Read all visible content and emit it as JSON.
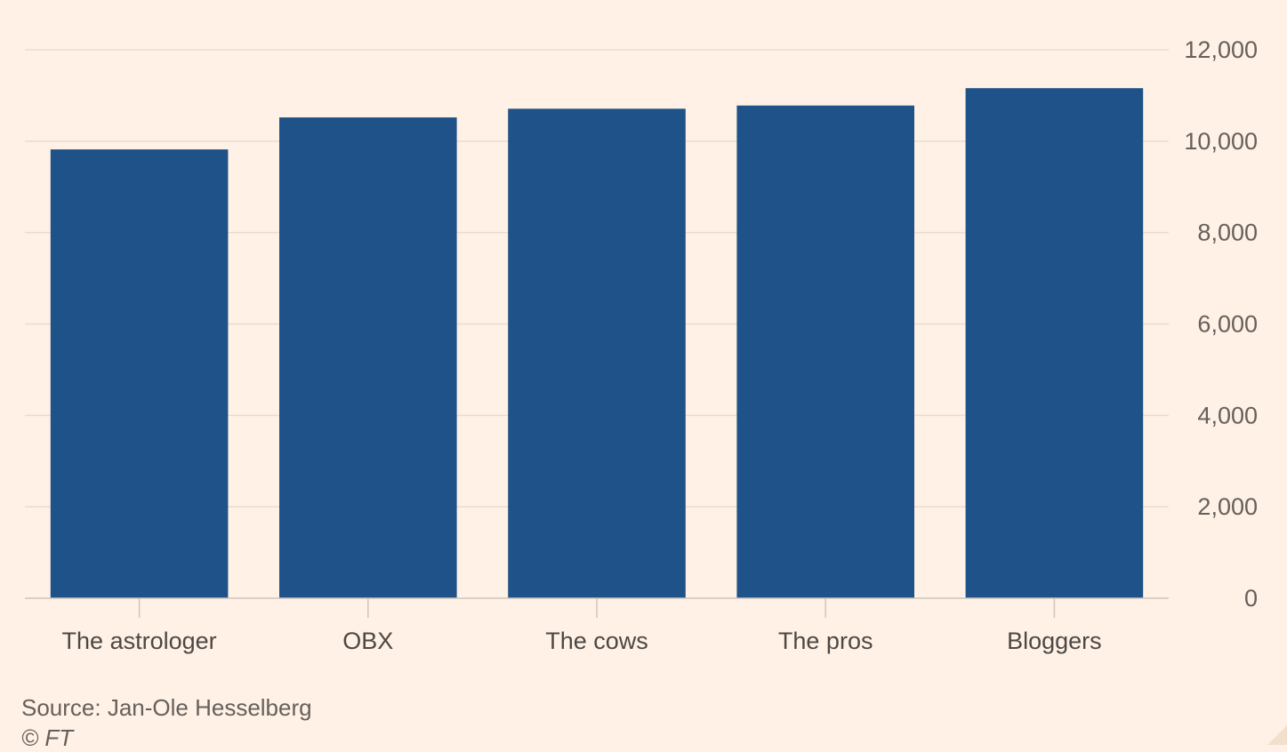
{
  "chart_data": {
    "type": "bar",
    "categories": [
      "The astrologer",
      "OBX",
      "The cows",
      "The pros",
      "Bloggers"
    ],
    "values": [
      9820,
      10520,
      10710,
      10780,
      11160
    ],
    "ylim": [
      0,
      12000
    ],
    "yticks": [
      0,
      2000,
      4000,
      6000,
      8000,
      10000,
      12000
    ],
    "ytick_labels": [
      "0",
      "2,000",
      "4,000",
      "6,000",
      "8,000",
      "10,000",
      "12,000"
    ],
    "y_axis_side": "right",
    "grid": true,
    "legend": false,
    "bar_color": "#1F5288",
    "grid_color": "#E8DCD0",
    "axis_color": "#CFC5BD",
    "background_color": "#FFF1E5"
  },
  "footer": {
    "source": "Source: Jan-Ole Hesselberg",
    "copyright": "© FT"
  }
}
